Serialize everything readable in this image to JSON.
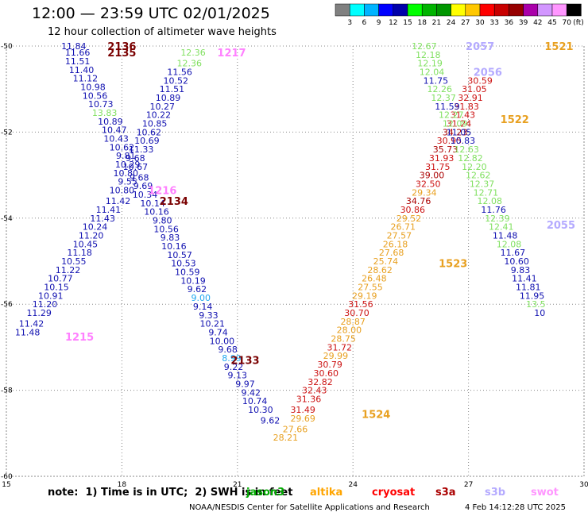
{
  "title": "12:00 — 23:59 UTC 02/01/2025",
  "subtitle": "12 hour collection of altimeter wave heights",
  "colorbar": {
    "levels": [
      "3",
      "6",
      "9",
      "12",
      "15",
      "18",
      "21",
      "24",
      "27",
      "30",
      "33",
      "36",
      "39",
      "42",
      "45",
      "70"
    ],
    "unit": "(ft)",
    "colors": [
      "#808080",
      "#00ffff",
      "#00b4ff",
      "#0000ff",
      "#0000aa",
      "#00ff00",
      "#00b400",
      "#009600",
      "#ffff00",
      "#ffc800",
      "#ff0000",
      "#c80000",
      "#960000",
      "#aa00aa",
      "#d296ff",
      "#ff96ff",
      "#000000"
    ]
  },
  "note": "note:  1) Time is in UTC;  2) SWH is in feet",
  "satellites": [
    {
      "name": "jason3",
      "color": "#00aa00"
    },
    {
      "name": "altika",
      "color": "#ffa500"
    },
    {
      "name": "cryosat",
      "color": "#ff0000"
    },
    {
      "name": "s3a",
      "color": "#aa0000"
    },
    {
      "name": "s3b",
      "color": "#b4aaff"
    },
    {
      "name": "swot",
      "color": "#ff96ff"
    }
  ],
  "footer": "NOAA/NESDIS Center for Satellite Applications and Research",
  "footer_stamp": "4 Feb 14:12:28 UTC 2025",
  "chart_data": {
    "type": "scatter",
    "xlim": [
      15,
      30
    ],
    "ylim": [
      -60,
      -50
    ],
    "xticks": [
      "15",
      "18",
      "21",
      "24",
      "27",
      "30"
    ],
    "yticks": [
      "-50",
      "-52",
      "-54",
      "-56",
      "-58",
      "-60"
    ],
    "grid": true,
    "label_colors": {
      "b": "#1010b0",
      "c": "#20a8f0",
      "g": "#80e060",
      "o": "#e8a020",
      "r": "#cc1111",
      "d": "#aa0000"
    },
    "pass_labels": [
      {
        "text": "2136",
        "x": 18.0,
        "y": -50.0,
        "color": "#7a0000"
      },
      {
        "text": "2135",
        "x": 18.0,
        "y": -50.15,
        "color": "#7a0000"
      },
      {
        "text": "1217",
        "x": 20.85,
        "y": -50.15,
        "color": "#ff80ff"
      },
      {
        "text": "1216",
        "x": 19.05,
        "y": -53.35,
        "color": "#ff80ff"
      },
      {
        "text": "2134",
        "x": 19.35,
        "y": -53.6,
        "color": "#7a0000"
      },
      {
        "text": "1215",
        "x": 16.9,
        "y": -56.75,
        "color": "#ff80ff"
      },
      {
        "text": "2133",
        "x": 21.2,
        "y": -57.3,
        "color": "#7a0000"
      },
      {
        "text": "1524",
        "x": 24.6,
        "y": -58.55,
        "color": "#e8a020"
      },
      {
        "text": "1523",
        "x": 26.6,
        "y": -55.05,
        "color": "#e8a020"
      },
      {
        "text": "1522",
        "x": 28.2,
        "y": -51.7,
        "color": "#e8a020"
      },
      {
        "text": "1521",
        "x": 29.35,
        "y": -50.0,
        "color": "#e8a020"
      },
      {
        "text": "2057",
        "x": 27.3,
        "y": -50.0,
        "color": "#b4aaff"
      },
      {
        "text": "2056",
        "x": 27.5,
        "y": -50.6,
        "color": "#b4aaff"
      },
      {
        "text": "2055",
        "x": 29.4,
        "y": -54.15,
        "color": "#b4aaff"
      }
    ],
    "points": [
      {
        "x": 16.75,
        "y": -50.0,
        "v": "11.84",
        "c": "b"
      },
      {
        "x": 16.85,
        "y": -50.15,
        "v": "11.66",
        "c": "b"
      },
      {
        "x": 16.85,
        "y": -50.35,
        "v": "11.51",
        "c": "b"
      },
      {
        "x": 16.95,
        "y": -50.55,
        "v": "11.40",
        "c": "b"
      },
      {
        "x": 17.05,
        "y": -50.75,
        "v": "11.12",
        "c": "b"
      },
      {
        "x": 17.25,
        "y": -50.95,
        "v": "10.98",
        "c": "b"
      },
      {
        "x": 17.3,
        "y": -51.15,
        "v": "10.56",
        "c": "b"
      },
      {
        "x": 17.45,
        "y": -51.35,
        "v": "10.73",
        "c": "b"
      },
      {
        "x": 17.55,
        "y": -51.55,
        "v": "13.83",
        "c": "g"
      },
      {
        "x": 17.7,
        "y": -51.75,
        "v": "10.89",
        "c": "b"
      },
      {
        "x": 17.8,
        "y": -51.95,
        "v": "10.47",
        "c": "b"
      },
      {
        "x": 17.85,
        "y": -52.15,
        "v": "10.43",
        "c": "b"
      },
      {
        "x": 18.0,
        "y": -52.35,
        "v": "10.62",
        "c": "b"
      },
      {
        "x": 18.1,
        "y": -52.55,
        "v": "9.81",
        "c": "b"
      },
      {
        "x": 18.15,
        "y": -52.75,
        "v": "10.29",
        "c": "b"
      },
      {
        "x": 18.1,
        "y": -52.95,
        "v": "10.80",
        "c": "b"
      },
      {
        "x": 18.15,
        "y": -53.15,
        "v": "9.55",
        "c": "b"
      },
      {
        "x": 18.0,
        "y": -53.35,
        "v": "10.80",
        "c": "b"
      },
      {
        "x": 17.9,
        "y": -53.6,
        "v": "11.42",
        "c": "b"
      },
      {
        "x": 17.65,
        "y": -53.8,
        "v": "11.41",
        "c": "b"
      },
      {
        "x": 17.5,
        "y": -54.0,
        "v": "11.43",
        "c": "b"
      },
      {
        "x": 17.3,
        "y": -54.2,
        "v": "10.24",
        "c": "b"
      },
      {
        "x": 17.2,
        "y": -54.4,
        "v": "11.20",
        "c": "b"
      },
      {
        "x": 17.05,
        "y": -54.6,
        "v": "10.45",
        "c": "b"
      },
      {
        "x": 16.9,
        "y": -54.8,
        "v": "11.18",
        "c": "b"
      },
      {
        "x": 16.75,
        "y": -55.0,
        "v": "10.55",
        "c": "b"
      },
      {
        "x": 16.6,
        "y": -55.2,
        "v": "11.22",
        "c": "b"
      },
      {
        "x": 16.4,
        "y": -55.4,
        "v": "10.77",
        "c": "b"
      },
      {
        "x": 16.3,
        "y": -55.6,
        "v": "10.15",
        "c": "b"
      },
      {
        "x": 16.15,
        "y": -55.8,
        "v": "10.91",
        "c": "b"
      },
      {
        "x": 16.0,
        "y": -56.0,
        "v": "11.20",
        "c": "b"
      },
      {
        "x": 15.85,
        "y": -56.2,
        "v": "11.29",
        "c": "b"
      },
      {
        "x": 15.65,
        "y": -56.45,
        "v": "11.42",
        "c": "b"
      },
      {
        "x": 15.55,
        "y": -56.65,
        "v": "11.48",
        "c": "b"
      },
      {
        "x": 19.85,
        "y": -50.15,
        "v": "12.36",
        "c": "g"
      },
      {
        "x": 19.75,
        "y": -50.4,
        "v": "12.36",
        "c": "g"
      },
      {
        "x": 19.5,
        "y": -50.6,
        "v": "11.56",
        "c": "b"
      },
      {
        "x": 19.4,
        "y": -50.8,
        "v": "10.52",
        "c": "b"
      },
      {
        "x": 19.3,
        "y": -51.0,
        "v": "11.51",
        "c": "b"
      },
      {
        "x": 19.2,
        "y": -51.2,
        "v": "10.89",
        "c": "b"
      },
      {
        "x": 19.05,
        "y": -51.4,
        "v": "10.27",
        "c": "b"
      },
      {
        "x": 18.95,
        "y": -51.6,
        "v": "10.22",
        "c": "b"
      },
      {
        "x": 18.85,
        "y": -51.8,
        "v": "10.85",
        "c": "b"
      },
      {
        "x": 18.7,
        "y": -52.0,
        "v": "10.62",
        "c": "b"
      },
      {
        "x": 18.65,
        "y": -52.2,
        "v": "10.69",
        "c": "b"
      },
      {
        "x": 18.5,
        "y": -52.4,
        "v": "11.33",
        "c": "b"
      },
      {
        "x": 18.35,
        "y": -52.6,
        "v": "9.68",
        "c": "b"
      },
      {
        "x": 18.35,
        "y": -52.8,
        "v": "10.67",
        "c": "b"
      },
      {
        "x": 18.45,
        "y": -53.05,
        "v": "9.68",
        "c": "b"
      },
      {
        "x": 18.55,
        "y": -53.25,
        "v": "9.69",
        "c": "b"
      },
      {
        "x": 18.6,
        "y": -53.45,
        "v": "10.34",
        "c": "b"
      },
      {
        "x": 18.8,
        "y": -53.65,
        "v": "10.14",
        "c": "b"
      },
      {
        "x": 18.9,
        "y": -53.85,
        "v": "10.16",
        "c": "b"
      },
      {
        "x": 19.05,
        "y": -54.05,
        "v": "9.80",
        "c": "b"
      },
      {
        "x": 19.15,
        "y": -54.25,
        "v": "10.56",
        "c": "b"
      },
      {
        "x": 19.25,
        "y": -54.45,
        "v": "9.83",
        "c": "b"
      },
      {
        "x": 19.35,
        "y": -54.65,
        "v": "10.16",
        "c": "b"
      },
      {
        "x": 19.5,
        "y": -54.85,
        "v": "10.57",
        "c": "b"
      },
      {
        "x": 19.6,
        "y": -55.05,
        "v": "10.53",
        "c": "b"
      },
      {
        "x": 19.7,
        "y": -55.25,
        "v": "10.59",
        "c": "b"
      },
      {
        "x": 19.85,
        "y": -55.45,
        "v": "10.19",
        "c": "b"
      },
      {
        "x": 19.95,
        "y": -55.65,
        "v": "9.62",
        "c": "b"
      },
      {
        "x": 20.05,
        "y": -55.85,
        "v": "9.00",
        "c": "c"
      },
      {
        "x": 20.1,
        "y": -56.05,
        "v": "9.14",
        "c": "b"
      },
      {
        "x": 20.25,
        "y": -56.25,
        "v": "9.33",
        "c": "b"
      },
      {
        "x": 20.35,
        "y": -56.45,
        "v": "10.21",
        "c": "b"
      },
      {
        "x": 20.5,
        "y": -56.65,
        "v": "9.74",
        "c": "b"
      },
      {
        "x": 20.6,
        "y": -56.85,
        "v": "10.00",
        "c": "b"
      },
      {
        "x": 20.75,
        "y": -57.05,
        "v": "9.68",
        "c": "b"
      },
      {
        "x": 20.85,
        "y": -57.25,
        "v": "8.99",
        "c": "c"
      },
      {
        "x": 20.9,
        "y": -57.45,
        "v": "9.22",
        "c": "b"
      },
      {
        "x": 21.0,
        "y": -57.65,
        "v": "9.13",
        "c": "b"
      },
      {
        "x": 21.2,
        "y": -57.85,
        "v": "9.97",
        "c": "b"
      },
      {
        "x": 21.35,
        "y": -58.05,
        "v": "9.42",
        "c": "b"
      },
      {
        "x": 21.45,
        "y": -58.25,
        "v": "10.74",
        "c": "b"
      },
      {
        "x": 21.6,
        "y": -58.45,
        "v": "10.30",
        "c": "b"
      },
      {
        "x": 21.85,
        "y": -58.7,
        "v": "9.62",
        "c": "b"
      },
      {
        "x": 22.25,
        "y": -59.1,
        "v": "28.21",
        "c": "o"
      },
      {
        "x": 22.5,
        "y": -58.9,
        "v": "27.66",
        "c": "o"
      },
      {
        "x": 22.7,
        "y": -58.65,
        "v": "29.69",
        "c": "o"
      },
      {
        "x": 22.7,
        "y": -58.45,
        "v": "31.49",
        "c": "r"
      },
      {
        "x": 22.85,
        "y": -58.2,
        "v": "31.36",
        "c": "r"
      },
      {
        "x": 23.0,
        "y": -58.0,
        "v": "32.43",
        "c": "r"
      },
      {
        "x": 23.15,
        "y": -57.8,
        "v": "32.82",
        "c": "r"
      },
      {
        "x": 23.3,
        "y": -57.6,
        "v": "30.60",
        "c": "r"
      },
      {
        "x": 23.4,
        "y": -57.4,
        "v": "30.79",
        "c": "r"
      },
      {
        "x": 23.55,
        "y": -57.2,
        "v": "29.99",
        "c": "o"
      },
      {
        "x": 23.65,
        "y": -57.0,
        "v": "31.72",
        "c": "r"
      },
      {
        "x": 23.75,
        "y": -56.8,
        "v": "28.75",
        "c": "o"
      },
      {
        "x": 23.9,
        "y": -56.6,
        "v": "28.00",
        "c": "o"
      },
      {
        "x": 24.0,
        "y": -56.4,
        "v": "28.87",
        "c": "o"
      },
      {
        "x": 24.1,
        "y": -56.2,
        "v": "30.70",
        "c": "r"
      },
      {
        "x": 24.2,
        "y": -56.0,
        "v": "31.56",
        "c": "r"
      },
      {
        "x": 24.3,
        "y": -55.8,
        "v": "29.19",
        "c": "o"
      },
      {
        "x": 24.45,
        "y": -55.6,
        "v": "27.55",
        "c": "o"
      },
      {
        "x": 24.55,
        "y": -55.4,
        "v": "26.48",
        "c": "o"
      },
      {
        "x": 24.7,
        "y": -55.2,
        "v": "28.62",
        "c": "o"
      },
      {
        "x": 24.85,
        "y": -55.0,
        "v": "25.74",
        "c": "o"
      },
      {
        "x": 25.0,
        "y": -54.8,
        "v": "27.68",
        "c": "o"
      },
      {
        "x": 25.1,
        "y": -54.6,
        "v": "26.18",
        "c": "o"
      },
      {
        "x": 25.2,
        "y": -54.4,
        "v": "27.57",
        "c": "o"
      },
      {
        "x": 25.3,
        "y": -54.2,
        "v": "26.71",
        "c": "o"
      },
      {
        "x": 25.45,
        "y": -54.0,
        "v": "29.52",
        "c": "o"
      },
      {
        "x": 25.55,
        "y": -53.8,
        "v": "30.86",
        "c": "r"
      },
      {
        "x": 25.7,
        "y": -53.6,
        "v": "34.76",
        "c": "d"
      },
      {
        "x": 25.85,
        "y": -53.4,
        "v": "29.34",
        "c": "o"
      },
      {
        "x": 25.95,
        "y": -53.2,
        "v": "32.50",
        "c": "r"
      },
      {
        "x": 26.05,
        "y": -53.0,
        "v": "39.00",
        "c": "d"
      },
      {
        "x": 26.2,
        "y": -52.8,
        "v": "31.75",
        "c": "r"
      },
      {
        "x": 26.3,
        "y": -52.6,
        "v": "31.93",
        "c": "r"
      },
      {
        "x": 26.4,
        "y": -52.4,
        "v": "35.73",
        "c": "d"
      },
      {
        "x": 26.5,
        "y": -52.2,
        "v": "30.95",
        "c": "r"
      },
      {
        "x": 26.65,
        "y": -52.0,
        "v": "34.23",
        "c": "d"
      },
      {
        "x": 26.75,
        "y": -51.8,
        "v": "31.24",
        "c": "r"
      },
      {
        "x": 26.85,
        "y": -51.6,
        "v": "31.43",
        "c": "r"
      },
      {
        "x": 26.95,
        "y": -51.4,
        "v": "31.83",
        "c": "r"
      },
      {
        "x": 27.05,
        "y": -51.2,
        "v": "32.91",
        "c": "r"
      },
      {
        "x": 27.15,
        "y": -51.0,
        "v": "31.05",
        "c": "r"
      },
      {
        "x": 27.3,
        "y": -50.8,
        "v": "30.59",
        "c": "r"
      },
      {
        "x": 25.85,
        "y": -50.0,
        "v": "12.67",
        "c": "g"
      },
      {
        "x": 25.95,
        "y": -50.2,
        "v": "12.18",
        "c": "g"
      },
      {
        "x": 26.0,
        "y": -50.4,
        "v": "12.19",
        "c": "g"
      },
      {
        "x": 26.05,
        "y": -50.6,
        "v": "12.04",
        "c": "g"
      },
      {
        "x": 26.15,
        "y": -50.8,
        "v": "11.75",
        "c": "b"
      },
      {
        "x": 26.25,
        "y": -51.0,
        "v": "12.26",
        "c": "g"
      },
      {
        "x": 26.35,
        "y": -51.2,
        "v": "12.37",
        "c": "g"
      },
      {
        "x": 26.45,
        "y": -51.4,
        "v": "11.59",
        "c": "b"
      },
      {
        "x": 26.55,
        "y": -51.6,
        "v": "12.27",
        "c": "g"
      },
      {
        "x": 26.65,
        "y": -51.8,
        "v": "12.09",
        "c": "g"
      },
      {
        "x": 26.75,
        "y": -52.0,
        "v": "11.05",
        "c": "b"
      },
      {
        "x": 26.85,
        "y": -52.2,
        "v": "10.83",
        "c": "b"
      },
      {
        "x": 26.95,
        "y": -52.4,
        "v": "12.63",
        "c": "g"
      },
      {
        "x": 27.05,
        "y": -52.6,
        "v": "12.82",
        "c": "g"
      },
      {
        "x": 27.15,
        "y": -52.8,
        "v": "12.20",
        "c": "g"
      },
      {
        "x": 27.25,
        "y": -53.0,
        "v": "12.62",
        "c": "g"
      },
      {
        "x": 27.35,
        "y": -53.2,
        "v": "12.37",
        "c": "g"
      },
      {
        "x": 27.45,
        "y": -53.4,
        "v": "12.71",
        "c": "g"
      },
      {
        "x": 27.55,
        "y": -53.6,
        "v": "12.08",
        "c": "g"
      },
      {
        "x": 27.65,
        "y": -53.8,
        "v": "11.76",
        "c": "b"
      },
      {
        "x": 27.75,
        "y": -54.0,
        "v": "12.39",
        "c": "g"
      },
      {
        "x": 27.85,
        "y": -54.2,
        "v": "12.41",
        "c": "g"
      },
      {
        "x": 27.95,
        "y": -54.4,
        "v": "11.48",
        "c": "b"
      },
      {
        "x": 28.05,
        "y": -54.6,
        "v": "12.08",
        "c": "g"
      },
      {
        "x": 28.15,
        "y": -54.8,
        "v": "11.67",
        "c": "b"
      },
      {
        "x": 28.25,
        "y": -55.0,
        "v": "10.60",
        "c": "b"
      },
      {
        "x": 28.35,
        "y": -55.2,
        "v": "9.83",
        "c": "b"
      },
      {
        "x": 28.45,
        "y": -55.4,
        "v": "11.41",
        "c": "b"
      },
      {
        "x": 28.55,
        "y": -55.6,
        "v": "11.81",
        "c": "b"
      },
      {
        "x": 28.65,
        "y": -55.8,
        "v": "11.95",
        "c": "b"
      },
      {
        "x": 28.75,
        "y": -56.0,
        "v": "13.5",
        "c": "g"
      },
      {
        "x": 28.85,
        "y": -56.2,
        "v": "10",
        "c": "b"
      }
    ]
  }
}
